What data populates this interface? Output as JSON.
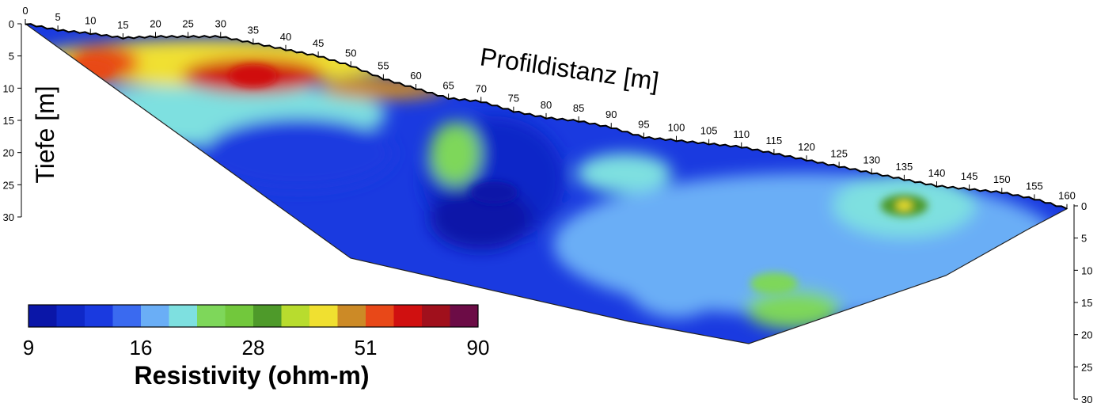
{
  "chart_data": {
    "type": "heatmap",
    "title": "",
    "xlabel": "Profildistanz [m]",
    "ylabel": "Tiefe [m]",
    "x_ticks": [
      0,
      5,
      10,
      15,
      20,
      25,
      30,
      35,
      40,
      45,
      50,
      55,
      60,
      65,
      70,
      75,
      80,
      85,
      90,
      95,
      100,
      105,
      110,
      115,
      120,
      125,
      130,
      135,
      140,
      145,
      150,
      155,
      160
    ],
    "xlim": [
      0,
      160
    ],
    "left_depth_axis": {
      "ticks": [
        0,
        5,
        10,
        15,
        20,
        25,
        30
      ],
      "range": [
        0,
        30
      ]
    },
    "right_depth_axis": {
      "ticks": [
        0,
        5,
        10,
        15,
        20,
        25,
        30
      ],
      "range": [
        0,
        30
      ]
    },
    "surface_profile": {
      "x": [
        0,
        5,
        10,
        15,
        20,
        25,
        30,
        35,
        40,
        45,
        50,
        55,
        60,
        65,
        70,
        75,
        80,
        85,
        90,
        95,
        100,
        105,
        110,
        115,
        120,
        125,
        130,
        135,
        140,
        145,
        150,
        155,
        160
      ],
      "depth_offset": [
        0,
        1.0,
        1.5,
        2.2,
        2.0,
        2.0,
        2.0,
        3.0,
        4.0,
        5.0,
        6.5,
        8.5,
        10.0,
        11.5,
        12.0,
        13.5,
        14.5,
        15.0,
        16.0,
        17.5,
        18.0,
        18.5,
        19.0,
        20.0,
        21.0,
        22.0,
        23.0,
        24.0,
        25.0,
        25.5,
        26.0,
        27.0,
        28.5
      ]
    },
    "colorbar": {
      "label": "Resistivity (ohm-m)",
      "tick_labels": [
        "9",
        "16",
        "28",
        "51",
        "90"
      ],
      "range": [
        9,
        90
      ],
      "scale": "log",
      "colors": [
        "#0a16a8",
        "#0f28c8",
        "#1a3ae0",
        "#3a6af0",
        "#6aaef6",
        "#7ee0e0",
        "#7ed75a",
        "#72c83c",
        "#4e9a2a",
        "#b8dc2e",
        "#f0e030",
        "#cc8a26",
        "#e84818",
        "#d01010",
        "#a0101c",
        "#6c0c46"
      ]
    },
    "anomalies": [
      {
        "x": 35,
        "depth": 8,
        "resistivity": 60
      },
      {
        "x": 10,
        "depth": 7,
        "resistivity": 55
      },
      {
        "x": 72,
        "depth": 26,
        "resistivity": 9
      },
      {
        "x": 135,
        "depth": 28,
        "resistivity": 30
      },
      {
        "x": 115,
        "depth": 40,
        "resistivity": 22
      }
    ]
  }
}
